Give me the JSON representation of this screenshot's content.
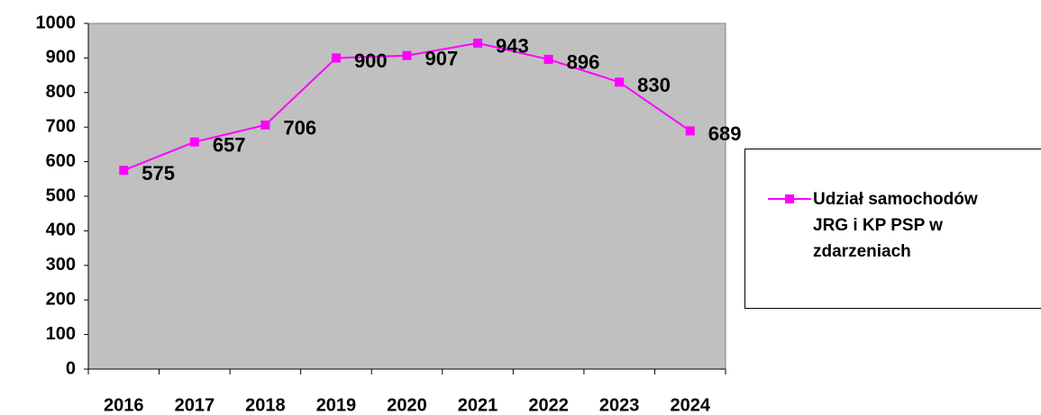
{
  "chart_data": {
    "type": "line",
    "categories": [
      "2016",
      "2017",
      "2018",
      "2019",
      "2020",
      "2021",
      "2022",
      "2023",
      "2024"
    ],
    "series": [
      {
        "name": "Udział samochodów JRG i KP PSP w zdarzeniach",
        "color": "#ff00ff",
        "values": [
          575,
          657,
          706,
          900,
          907,
          943,
          896,
          830,
          689
        ]
      }
    ],
    "ylim": [
      0,
      1000
    ],
    "yticks": [
      0,
      100,
      200,
      300,
      400,
      500,
      600,
      700,
      800,
      900,
      1000
    ],
    "legend": "right"
  }
}
